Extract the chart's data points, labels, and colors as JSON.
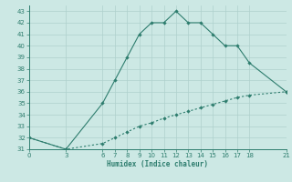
{
  "line1_x": [
    0,
    3,
    6,
    7,
    8,
    9,
    10,
    11,
    12,
    13,
    14,
    15,
    16,
    17,
    18,
    21
  ],
  "line1_y": [
    32,
    31,
    35,
    37,
    39,
    41,
    42,
    42,
    43,
    42,
    42,
    41,
    40,
    40,
    38.5,
    36
  ],
  "line2_x": [
    0,
    3,
    6,
    7,
    8,
    9,
    10,
    11,
    12,
    13,
    14,
    15,
    16,
    17,
    18,
    21
  ],
  "line2_y": [
    32,
    31,
    31.5,
    32,
    32.5,
    33,
    33.3,
    33.7,
    34.0,
    34.3,
    34.6,
    34.9,
    35.2,
    35.5,
    35.7,
    36
  ],
  "line_color": "#2e7d6e",
  "bg_color": "#cce8e4",
  "grid_color": "#aed0cc",
  "xlabel": "Humidex (Indice chaleur)",
  "xticks": [
    0,
    3,
    6,
    7,
    8,
    9,
    10,
    11,
    12,
    13,
    14,
    15,
    16,
    17,
    18,
    21
  ],
  "yticks": [
    31,
    32,
    33,
    34,
    35,
    36,
    37,
    38,
    39,
    40,
    41,
    42,
    43
  ],
  "xlim": [
    0,
    21
  ],
  "ylim": [
    31,
    43.5
  ]
}
